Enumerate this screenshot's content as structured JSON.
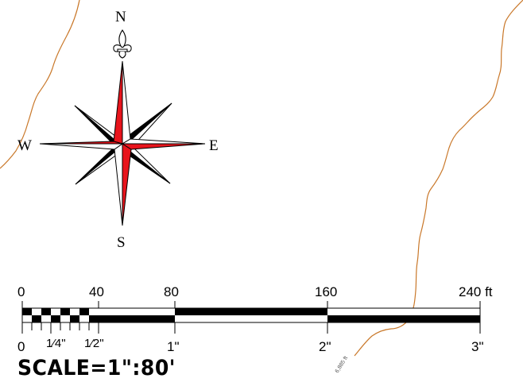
{
  "compass": {
    "north": "N",
    "south": "S",
    "east": "E",
    "west": "W",
    "point_color": "#e8141c"
  },
  "contour": {
    "label": "6,885 ft",
    "color": "#c9782a"
  },
  "scale_bar": {
    "feet_labels": [
      "0",
      "40",
      "80",
      "160",
      "240 ft"
    ],
    "inch_labels": {
      "zero": "0",
      "quarter": "1⁄4\"",
      "half": "1⁄2\"",
      "one": "1\"",
      "two": "2\"",
      "three": "3\""
    },
    "title": "SCALE=1\":80'"
  }
}
